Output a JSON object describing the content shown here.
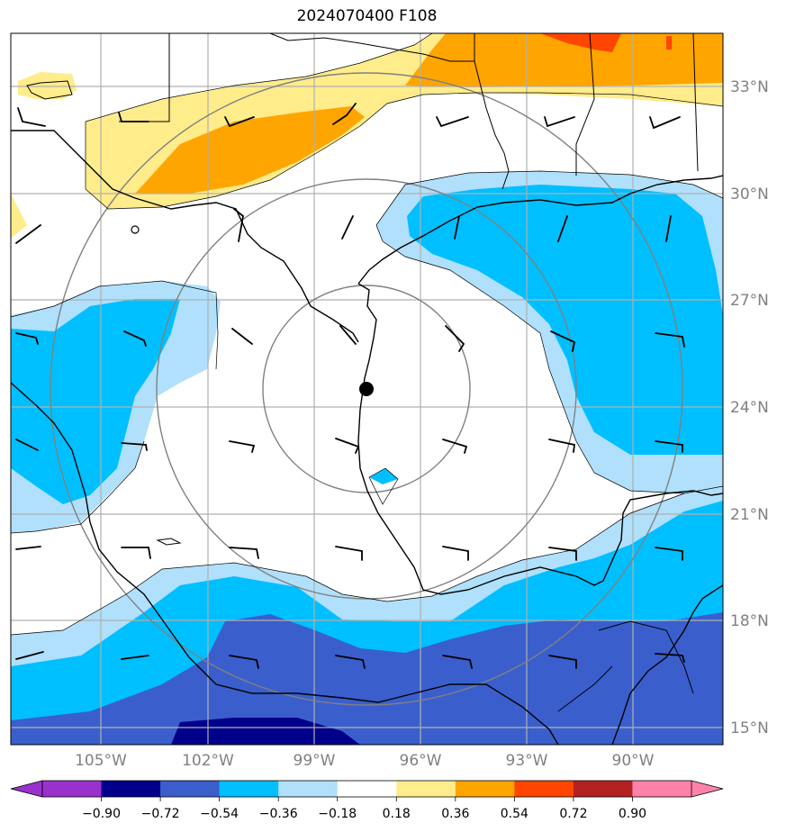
{
  "title": "2024070400 F108",
  "lat_labels": [
    "33°N",
    "30°N",
    "27°N",
    "24°N",
    "21°N",
    "18°N",
    "15°N"
  ],
  "lon_labels": [
    "105°W",
    "102°W",
    "99°W",
    "96°W",
    "93°W",
    "90°W"
  ],
  "colorbar": {
    "tick_labels": [
      "−0.90",
      "−0.72",
      "−0.54",
      "−0.36",
      "−0.18",
      "0.18",
      "0.36",
      "0.54",
      "0.72",
      "0.90"
    ],
    "colors": [
      "#9932cc",
      "#00008b",
      "#3a5fcd",
      "#00bfff",
      "#b0e0fb",
      "#ffffff",
      "#ffec8b",
      "#ffa500",
      "#ff4500",
      "#b22222",
      "#ff82ab"
    ]
  },
  "center_marker": {
    "lat": 24.4,
    "lon": -97.6
  },
  "colors": {
    "range_rings": "#808080",
    "gridlines": "#b0b0b0",
    "coastline": "#000000"
  }
}
